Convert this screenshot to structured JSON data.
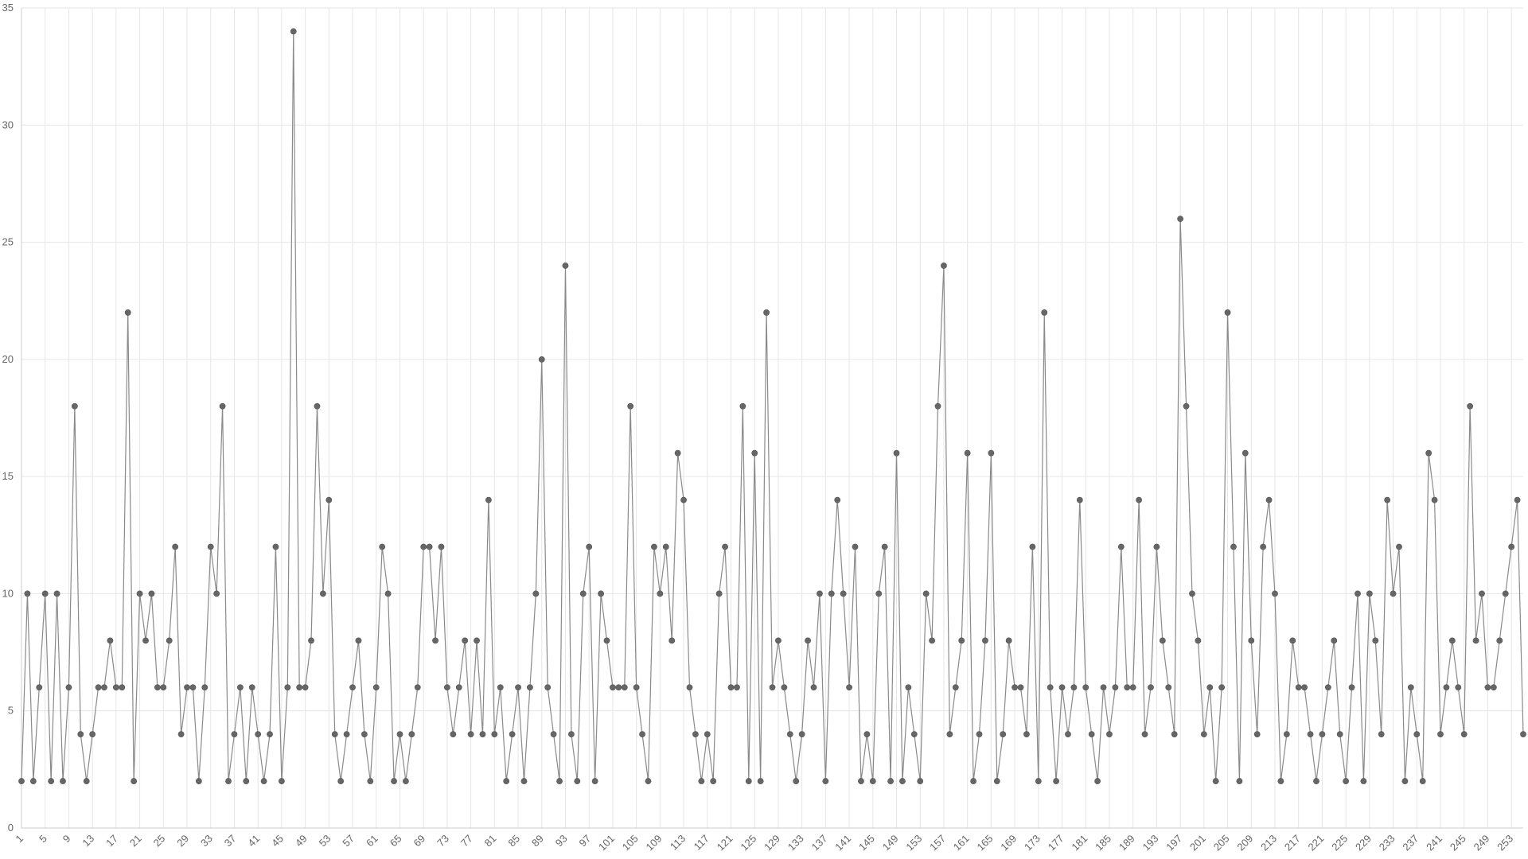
{
  "chart_data": {
    "type": "line",
    "title": "",
    "xlabel": "",
    "ylabel": "",
    "ylim": [
      0,
      35
    ],
    "y_ticks": [
      0,
      5,
      10,
      15,
      20,
      25,
      30,
      35
    ],
    "x_tick_step": 4,
    "grid": true,
    "legend": "none",
    "series": [
      {
        "values": [
          2,
          10,
          2,
          6,
          10,
          2,
          10,
          2,
          6,
          18,
          4,
          2,
          4,
          6,
          6,
          8,
          6,
          6,
          22,
          2,
          10,
          8,
          10,
          6,
          6,
          8,
          12,
          4,
          6,
          6,
          2,
          6,
          12,
          10,
          18,
          2,
          4,
          6,
          2,
          6,
          4,
          2,
          4,
          12,
          2,
          6,
          34,
          6,
          6,
          8,
          18,
          10,
          14,
          4,
          2,
          4,
          6,
          8,
          4,
          2,
          6,
          12,
          10,
          2,
          4,
          2,
          4,
          6,
          12,
          12,
          8,
          12,
          6,
          4,
          6,
          8,
          4,
          8,
          4,
          14,
          4,
          6,
          2,
          4,
          6,
          2,
          6,
          10,
          20,
          6,
          4,
          2,
          24,
          4,
          2,
          10,
          12,
          2,
          10,
          8,
          6,
          6,
          6,
          18,
          6,
          4,
          2,
          12,
          10,
          12,
          8,
          16,
          14,
          6,
          4,
          2,
          4,
          2,
          10,
          12,
          6,
          6,
          18,
          2,
          16,
          2,
          22,
          6,
          8,
          6,
          4,
          2,
          4,
          8,
          6,
          10,
          2,
          10,
          14,
          10,
          6,
          12,
          2,
          4,
          2,
          10,
          12,
          2,
          16,
          2,
          6,
          4,
          2,
          10,
          8,
          18,
          24,
          4,
          6,
          8,
          16,
          2,
          4,
          8,
          16,
          2,
          4,
          8,
          6,
          6,
          4,
          12,
          2,
          22,
          6,
          2,
          6,
          4,
          6,
          14,
          6,
          4,
          2,
          6,
          4,
          6,
          12,
          6,
          6,
          14,
          4,
          6,
          12,
          8,
          6,
          4,
          26,
          18,
          10,
          8,
          4,
          6,
          2,
          6,
          22,
          12,
          2,
          16,
          8,
          4,
          12,
          14,
          10,
          2,
          4,
          8,
          6,
          6,
          4,
          2,
          4,
          6,
          8,
          4,
          2,
          6,
          10,
          2,
          10,
          8,
          4,
          14,
          10,
          12,
          2,
          6,
          4,
          2,
          16,
          14,
          4,
          6,
          8,
          6,
          4,
          18,
          8,
          10,
          6,
          6,
          8,
          10,
          12,
          14,
          4
        ]
      }
    ],
    "colors": {
      "line": "#8a8a8a",
      "point": "#666666",
      "grid": "#e6e6e6",
      "axis": "#cccccc",
      "tick_text": "#666666"
    }
  }
}
